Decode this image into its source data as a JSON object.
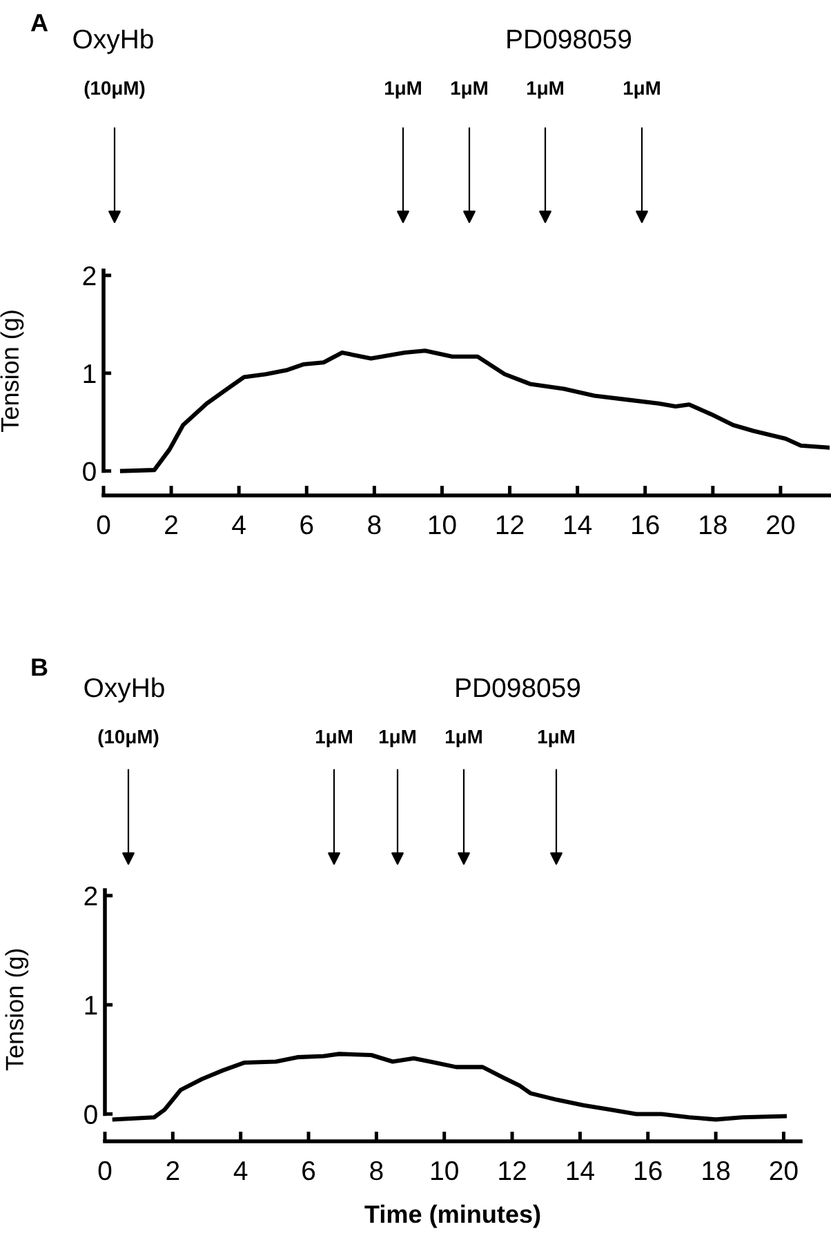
{
  "chart_data": [
    {
      "type": "line",
      "title": "A",
      "ylabel": "Tension (g)",
      "x": [
        0.55,
        1.5,
        1.95,
        2.35,
        3.05,
        3.7,
        4.15,
        4.8,
        5.4,
        5.9,
        6.5,
        7.05,
        7.9,
        8.9,
        9.5,
        10.3,
        11.05,
        11.85,
        12.6,
        13.6,
        14.5,
        15.45,
        16.4,
        16.9,
        17.3,
        17.95,
        18.6,
        19.2,
        20.15,
        20.6,
        21.4
      ],
      "series": [
        {
          "color": "#000000",
          "values": [
            0.0,
            0.01,
            0.22,
            0.47,
            0.69,
            0.85,
            0.96,
            0.99,
            1.03,
            1.09,
            1.11,
            1.21,
            1.15,
            1.21,
            1.23,
            1.17,
            1.17,
            0.99,
            0.89,
            0.84,
            0.77,
            0.73,
            0.69,
            0.66,
            0.68,
            0.58,
            0.47,
            0.41,
            0.33,
            0.26,
            0.24
          ]
        }
      ],
      "xlim": [
        0,
        21.45
      ],
      "ylim": [
        -0.25,
        2.05
      ],
      "xticks": [
        0,
        2,
        4,
        6,
        8,
        10,
        12,
        14,
        16,
        18,
        20
      ],
      "yticks": [
        0,
        1,
        2
      ],
      "annotations": [
        "OxyHb",
        "PD098059",
        "(10μM)",
        "1μM",
        "1μM",
        "1μM",
        "1μM"
      ],
      "grid": false,
      "legend": false
    },
    {
      "type": "line",
      "title": "B",
      "ylabel": "Tension (g)",
      "xlabel": "Time (minutes)",
      "x": [
        0.28,
        1.45,
        1.76,
        2.23,
        2.86,
        3.48,
        4.1,
        5.04,
        5.67,
        6.45,
        6.9,
        7.85,
        8.48,
        9.1,
        9.73,
        10.35,
        11.13,
        11.76,
        12.22,
        12.54,
        13.32,
        14.1,
        14.88,
        15.66,
        16.4,
        17.22,
        18.0,
        18.78,
        20.03
      ],
      "series": [
        {
          "color": "#000000",
          "values": [
            -0.05,
            -0.03,
            0.04,
            0.22,
            0.32,
            0.4,
            0.47,
            0.48,
            0.52,
            0.53,
            0.55,
            0.54,
            0.48,
            0.51,
            0.47,
            0.43,
            0.43,
            0.33,
            0.26,
            0.19,
            0.13,
            0.08,
            0.04,
            0.0,
            0.0,
            -0.03,
            -0.05,
            -0.03,
            -0.02
          ]
        }
      ],
      "xlim": [
        0,
        20.5
      ],
      "ylim": [
        -0.25,
        2.05
      ],
      "xticks": [
        0,
        2,
        4,
        6,
        8,
        10,
        12,
        14,
        16,
        18,
        20
      ],
      "yticks": [
        0,
        1,
        2
      ],
      "annotations": [
        "OxyHb",
        "PD098059",
        "(10μM)",
        "1μM",
        "1μM",
        "1μM",
        "1μM"
      ],
      "grid": false,
      "legend": false
    }
  ]
}
